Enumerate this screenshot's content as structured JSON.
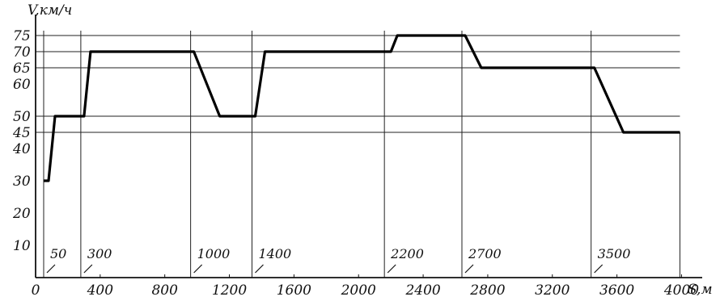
{
  "chart_data": {
    "type": "line",
    "title": "",
    "xlabel": "S,м",
    "ylabel": "V,км/ч",
    "xlim": [
      0,
      4000
    ],
    "ylim": [
      0,
      80
    ],
    "grid": false,
    "y_ticks": [
      10,
      20,
      30,
      40,
      45,
      50,
      60,
      65,
      70,
      75
    ],
    "x_ticks": [
      {
        "value": 0,
        "label": "0"
      },
      {
        "value": 400,
        "label": "400"
      },
      {
        "value": 800,
        "label": "800"
      },
      {
        "value": 1200,
        "label": "1200"
      },
      {
        "value": 1600,
        "label": "1600"
      },
      {
        "value": 2000,
        "label": "2000"
      },
      {
        "value": 2400,
        "label": "2400"
      },
      {
        "value": 2800,
        "label": "2800"
      },
      {
        "value": 3200,
        "label": "3200"
      },
      {
        "value": 3600,
        "label": "3600"
      },
      {
        "value": 4000,
        "label": "4000"
      }
    ],
    "horizontal_reference_lines": [
      45,
      50,
      65,
      70,
      75
    ],
    "boundary_marks": [
      {
        "x": 50,
        "label": "50"
      },
      {
        "x": 280,
        "label": "300"
      },
      {
        "x": 960,
        "label": "1000"
      },
      {
        "x": 1340,
        "label": "1400"
      },
      {
        "x": 2160,
        "label": "2200"
      },
      {
        "x": 2640,
        "label": "2700"
      },
      {
        "x": 3440,
        "label": "3500"
      }
    ],
    "series": [
      {
        "x": [
          50,
          80,
          120,
          280,
          300,
          340,
          960,
          980,
          1140,
          1340,
          1360,
          1420,
          2160,
          2200,
          2240,
          2640,
          2660,
          2760,
          3440,
          3460,
          3640,
          3990
        ],
        "values": [
          30,
          30,
          50,
          50,
          50,
          70,
          70,
          70,
          50,
          50,
          50,
          70,
          70,
          70,
          75,
          75,
          75,
          65,
          65,
          65,
          45,
          45
        ]
      }
    ]
  }
}
